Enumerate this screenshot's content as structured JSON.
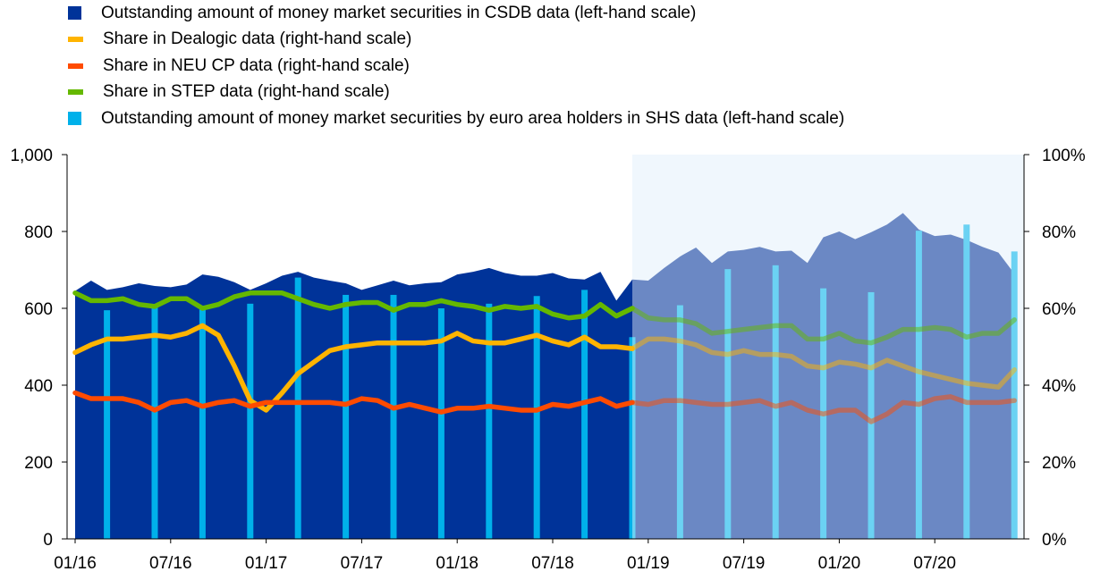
{
  "colors": {
    "csdb": "#003399",
    "dealogic": "#ffb400",
    "neucp": "#ff4b00",
    "step": "#65b800",
    "shs": "#00b1ea",
    "highlight": "#e6f2fb"
  },
  "chart_data": {
    "type": "area",
    "legend_position": "top-left",
    "grid": false,
    "x_start": "2016-01",
    "x_end": "2020-12",
    "x_ticks": [
      "01/16",
      "07/16",
      "01/17",
      "07/17",
      "01/18",
      "07/18",
      "01/19",
      "07/19",
      "01/20",
      "07/20"
    ],
    "x_tick_dates": [
      "2016-01",
      "2016-07",
      "2017-01",
      "2017-07",
      "2018-01",
      "2018-07",
      "2019-01",
      "2019-07",
      "2020-01",
      "2020-07"
    ],
    "y_left": {
      "ticks": [
        "0",
        "200",
        "400",
        "600",
        "800",
        "1,000"
      ],
      "range": [
        0,
        1000
      ]
    },
    "y_right": {
      "ticks": [
        "0%",
        "20%",
        "40%",
        "60%",
        "80%",
        "100%"
      ],
      "range": [
        0,
        100
      ]
    },
    "shaded_region": {
      "from": "2018-12",
      "to": "2020-12"
    },
    "series": [
      {
        "name": "Outstanding amount of money market securities in CSDB data (left-hand scale)",
        "kind": "area",
        "axis": "left",
        "color_key": "csdb",
        "x": [
          "2016-01",
          "2016-02",
          "2016-03",
          "2016-04",
          "2016-05",
          "2016-06",
          "2016-07",
          "2016-08",
          "2016-09",
          "2016-10",
          "2016-11",
          "2016-12",
          "2017-01",
          "2017-02",
          "2017-03",
          "2017-04",
          "2017-05",
          "2017-06",
          "2017-07",
          "2017-08",
          "2017-09",
          "2017-10",
          "2017-11",
          "2017-12",
          "2018-01",
          "2018-02",
          "2018-03",
          "2018-04",
          "2018-05",
          "2018-06",
          "2018-07",
          "2018-08",
          "2018-09",
          "2018-10",
          "2018-11",
          "2018-12",
          "2019-01",
          "2019-02",
          "2019-03",
          "2019-04",
          "2019-05",
          "2019-06",
          "2019-07",
          "2019-08",
          "2019-09",
          "2019-10",
          "2019-11",
          "2019-12",
          "2020-01",
          "2020-02",
          "2020-03",
          "2020-04",
          "2020-05",
          "2020-06",
          "2020-07",
          "2020-08",
          "2020-09",
          "2020-10",
          "2020-11",
          "2020-12"
        ],
        "values": [
          645,
          672,
          648,
          655,
          665,
          658,
          655,
          662,
          688,
          682,
          668,
          648,
          665,
          685,
          695,
          680,
          672,
          665,
          648,
          660,
          672,
          660,
          665,
          668,
          688,
          695,
          705,
          692,
          685,
          685,
          692,
          678,
          675,
          695,
          620,
          675,
          672,
          705,
          735,
          758,
          718,
          748,
          752,
          760,
          748,
          750,
          718,
          785,
          800,
          780,
          798,
          818,
          848,
          805,
          788,
          792,
          778,
          760,
          745,
          690
        ]
      },
      {
        "name": "Share in Dealogic data (right-hand scale)",
        "kind": "line",
        "axis": "right",
        "color_key": "dealogic",
        "x": [
          "2016-01",
          "2016-02",
          "2016-03",
          "2016-04",
          "2016-05",
          "2016-06",
          "2016-07",
          "2016-08",
          "2016-09",
          "2016-10",
          "2016-11",
          "2016-12",
          "2017-01",
          "2017-02",
          "2017-03",
          "2017-04",
          "2017-05",
          "2017-06",
          "2017-07",
          "2017-08",
          "2017-09",
          "2017-10",
          "2017-11",
          "2017-12",
          "2018-01",
          "2018-02",
          "2018-03",
          "2018-04",
          "2018-05",
          "2018-06",
          "2018-07",
          "2018-08",
          "2018-09",
          "2018-10",
          "2018-11",
          "2018-12",
          "2019-01",
          "2019-02",
          "2019-03",
          "2019-04",
          "2019-05",
          "2019-06",
          "2019-07",
          "2019-08",
          "2019-09",
          "2019-10",
          "2019-11",
          "2019-12",
          "2020-01",
          "2020-02",
          "2020-03",
          "2020-04",
          "2020-05",
          "2020-06",
          "2020-07",
          "2020-08",
          "2020-09",
          "2020-10",
          "2020-11",
          "2020-12"
        ],
        "values": [
          48.5,
          50.5,
          52,
          52,
          52.5,
          53,
          52.5,
          53.5,
          55.5,
          53,
          45,
          36,
          33.5,
          38,
          43,
          46,
          49,
          50,
          50.5,
          51,
          51,
          51,
          51,
          51.5,
          53.5,
          51.5,
          51,
          51,
          52,
          53,
          51.5,
          50.5,
          52.5,
          50,
          50,
          49.5,
          52,
          52,
          51.5,
          50.5,
          48.5,
          48,
          49,
          48,
          48,
          47.5,
          45,
          44.5,
          46,
          45.5,
          44.5,
          46.5,
          45,
          43.5,
          42.5,
          41.5,
          40.5,
          40,
          39.5,
          44
        ]
      },
      {
        "name": "Share in NEU CP data (right-hand scale)",
        "kind": "line",
        "axis": "right",
        "color_key": "neucp",
        "x": [
          "2016-01",
          "2016-02",
          "2016-03",
          "2016-04",
          "2016-05",
          "2016-06",
          "2016-07",
          "2016-08",
          "2016-09",
          "2016-10",
          "2016-11",
          "2016-12",
          "2017-01",
          "2017-02",
          "2017-03",
          "2017-04",
          "2017-05",
          "2017-06",
          "2017-07",
          "2017-08",
          "2017-09",
          "2017-10",
          "2017-11",
          "2017-12",
          "2018-01",
          "2018-02",
          "2018-03",
          "2018-04",
          "2018-05",
          "2018-06",
          "2018-07",
          "2018-08",
          "2018-09",
          "2018-10",
          "2018-11",
          "2018-12",
          "2019-01",
          "2019-02",
          "2019-03",
          "2019-04",
          "2019-05",
          "2019-06",
          "2019-07",
          "2019-08",
          "2019-09",
          "2019-10",
          "2019-11",
          "2019-12",
          "2020-01",
          "2020-02",
          "2020-03",
          "2020-04",
          "2020-05",
          "2020-06",
          "2020-07",
          "2020-08",
          "2020-09",
          "2020-10",
          "2020-11",
          "2020-12"
        ],
        "values": [
          38,
          36.5,
          36.5,
          36.5,
          35.5,
          33.5,
          35.5,
          36,
          34.5,
          35.5,
          36,
          34.5,
          35.5,
          35.5,
          35.5,
          35.5,
          35.5,
          35,
          36.5,
          36,
          34,
          35,
          34,
          33,
          34,
          34,
          34.5,
          34,
          33.5,
          33.5,
          35,
          34.5,
          35.5,
          36.5,
          34.5,
          35.5,
          35,
          36,
          36,
          35.5,
          35,
          35,
          35.5,
          36,
          34.5,
          35.5,
          33.5,
          32.5,
          33.5,
          33.5,
          30.5,
          32.5,
          35.5,
          35,
          36.5,
          37,
          35.5,
          35.5,
          35.5,
          36
        ]
      },
      {
        "name": "Share in STEP data (right-hand scale)",
        "kind": "line",
        "axis": "right",
        "color_key": "step",
        "x": [
          "2016-01",
          "2016-02",
          "2016-03",
          "2016-04",
          "2016-05",
          "2016-06",
          "2016-07",
          "2016-08",
          "2016-09",
          "2016-10",
          "2016-11",
          "2016-12",
          "2017-01",
          "2017-02",
          "2017-03",
          "2017-04",
          "2017-05",
          "2017-06",
          "2017-07",
          "2017-08",
          "2017-09",
          "2017-10",
          "2017-11",
          "2017-12",
          "2018-01",
          "2018-02",
          "2018-03",
          "2018-04",
          "2018-05",
          "2018-06",
          "2018-07",
          "2018-08",
          "2018-09",
          "2018-10",
          "2018-11",
          "2018-12",
          "2019-01",
          "2019-02",
          "2019-03",
          "2019-04",
          "2019-05",
          "2019-06",
          "2019-07",
          "2019-08",
          "2019-09",
          "2019-10",
          "2019-11",
          "2019-12",
          "2020-01",
          "2020-02",
          "2020-03",
          "2020-04",
          "2020-05",
          "2020-06",
          "2020-07",
          "2020-08",
          "2020-09",
          "2020-10",
          "2020-11",
          "2020-12"
        ],
        "values": [
          64,
          62,
          62,
          62.5,
          61,
          60.5,
          62.5,
          62.5,
          60,
          61,
          63,
          64,
          64,
          64,
          62.5,
          61,
          60,
          61,
          61.5,
          61.5,
          59.5,
          61,
          61,
          62,
          61,
          60.5,
          59.5,
          60.5,
          60,
          60.5,
          58.5,
          57.5,
          58,
          61,
          58,
          60,
          57.5,
          57,
          57,
          56,
          53.5,
          54,
          54.5,
          55,
          55.5,
          55.5,
          52,
          52,
          53.5,
          51.5,
          51,
          52.5,
          54.5,
          54.5,
          55,
          54.5,
          52.5,
          53.5,
          53.5,
          57
        ]
      },
      {
        "name": "Outstanding amount of money market securities by euro area holders in SHS data (left-hand scale)",
        "kind": "bar",
        "axis": "left",
        "color_key": "shs",
        "x": [
          "2016-03",
          "2016-06",
          "2016-09",
          "2016-12",
          "2017-03",
          "2017-06",
          "2017-09",
          "2017-12",
          "2018-03",
          "2018-06",
          "2018-09",
          "2018-12",
          "2019-03",
          "2019-06",
          "2019-09",
          "2019-12",
          "2020-03",
          "2020-06",
          "2020-09",
          "2020-12"
        ],
        "values": [
          595,
          605,
          605,
          612,
          680,
          635,
          635,
          600,
          612,
          632,
          648,
          525,
          608,
          702,
          712,
          652,
          642,
          802,
          818,
          748
        ]
      }
    ]
  }
}
